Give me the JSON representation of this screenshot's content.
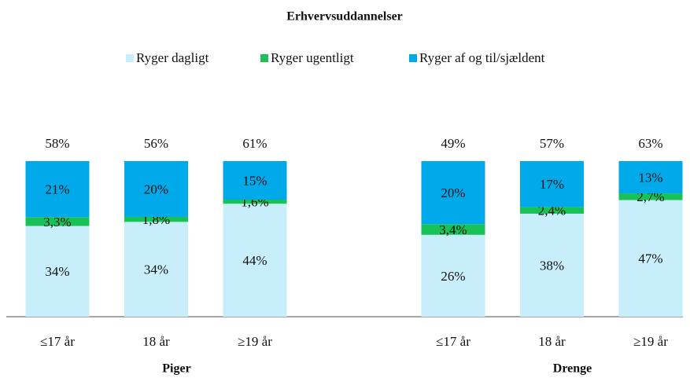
{
  "chart_data": {
    "type": "stacked_bar",
    "title": "Erhvervsuddannelser",
    "normalize": true,
    "categories": [
      "≤17 år",
      "18 år",
      "≥19 år",
      "≤17 år",
      "18 år",
      "≥19 år"
    ],
    "group_labels": [
      "Piger",
      "Drenge"
    ],
    "series": [
      {
        "name": "Ryger dagligt",
        "color": "#c9eefb",
        "values": [
          34,
          34,
          44,
          26,
          38,
          47
        ],
        "value_labels": [
          "34%",
          "34%",
          "44%",
          "26%",
          "38%",
          "47%"
        ]
      },
      {
        "name": "Ryger ugentligt",
        "color": "#19c257",
        "values": [
          3.3,
          1.8,
          1.6,
          3.4,
          2.4,
          2.7
        ],
        "value_labels": [
          "3,3%",
          "1,8%",
          "1,6%",
          "3,4%",
          "2,4%",
          "2,7%"
        ]
      },
      {
        "name": "Ryger af og til/sjældent",
        "color": "#00a9ea",
        "values": [
          21,
          20,
          15,
          20,
          17,
          13
        ],
        "value_labels": [
          "21%",
          "20%",
          "15%",
          "20%",
          "17%",
          "13%"
        ]
      }
    ],
    "totals": [
      58,
      56,
      61,
      49,
      57,
      63
    ],
    "total_labels": [
      "58%",
      "56%",
      "61%",
      "49%",
      "57%",
      "63%"
    ]
  }
}
